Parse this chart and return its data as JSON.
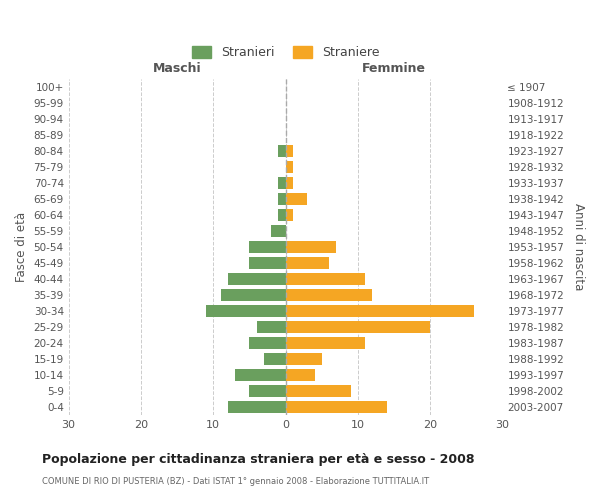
{
  "age_groups": [
    "0-4",
    "5-9",
    "10-14",
    "15-19",
    "20-24",
    "25-29",
    "30-34",
    "35-39",
    "40-44",
    "45-49",
    "50-54",
    "55-59",
    "60-64",
    "65-69",
    "70-74",
    "75-79",
    "80-84",
    "85-89",
    "90-94",
    "95-99",
    "100+"
  ],
  "birth_years": [
    "2003-2007",
    "1998-2002",
    "1993-1997",
    "1988-1992",
    "1983-1987",
    "1978-1982",
    "1973-1977",
    "1968-1972",
    "1963-1967",
    "1958-1962",
    "1953-1957",
    "1948-1952",
    "1943-1947",
    "1938-1942",
    "1933-1937",
    "1928-1932",
    "1923-1927",
    "1918-1922",
    "1913-1917",
    "1908-1912",
    "≤ 1907"
  ],
  "males": [
    8,
    5,
    7,
    3,
    5,
    4,
    11,
    9,
    8,
    5,
    5,
    2,
    1,
    1,
    1,
    0,
    1,
    0,
    0,
    0,
    0
  ],
  "females": [
    14,
    9,
    4,
    5,
    11,
    20,
    26,
    12,
    11,
    6,
    7,
    0,
    1,
    3,
    1,
    1,
    1,
    0,
    0,
    0,
    0
  ],
  "male_color": "#6a9f5e",
  "female_color": "#f5a623",
  "male_label": "Stranieri",
  "female_label": "Straniere",
  "title": "Popolazione per cittadinanza straniera per età e sesso - 2008",
  "subtitle": "COMUNE DI RIO DI PUSTERIA (BZ) - Dati ISTAT 1° gennaio 2008 - Elaborazione TUTTITALIA.IT",
  "xlabel_left": "Maschi",
  "xlabel_right": "Femmine",
  "ylabel_left": "Fasce di età",
  "ylabel_right": "Anni di nascita",
  "xlim": 30,
  "xticks": [
    -30,
    -20,
    -10,
    0,
    10,
    20,
    30
  ],
  "xticklabels": [
    "30",
    "20",
    "10",
    "0",
    "10",
    "20",
    "30"
  ],
  "background_color": "#ffffff",
  "grid_color": "#cccccc"
}
